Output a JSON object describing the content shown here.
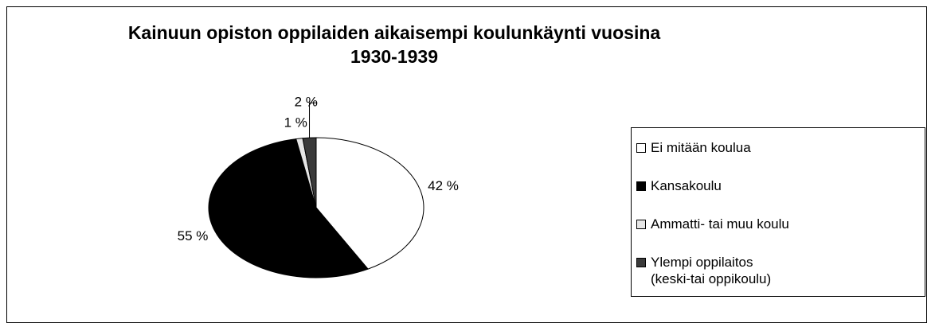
{
  "chart_data": {
    "type": "pie",
    "title": "Kainuun opiston oppilaiden aikaisempi koulunkäynti vuosina 1930-1939",
    "categories": [
      "Ei mitään koulua",
      "Kansakoulu",
      "Ammatti- tai muu koulu",
      "Ylempi oppilaitos (keski-tai oppikoulu)"
    ],
    "values": [
      42,
      55,
      1,
      2
    ],
    "value_labels": [
      "42 %",
      "55 %",
      "1 %",
      "2 %"
    ],
    "colors": [
      "#ffffff",
      "#000000",
      "#e6e6e6",
      "#3a3a3a"
    ],
    "legend": "right"
  }
}
